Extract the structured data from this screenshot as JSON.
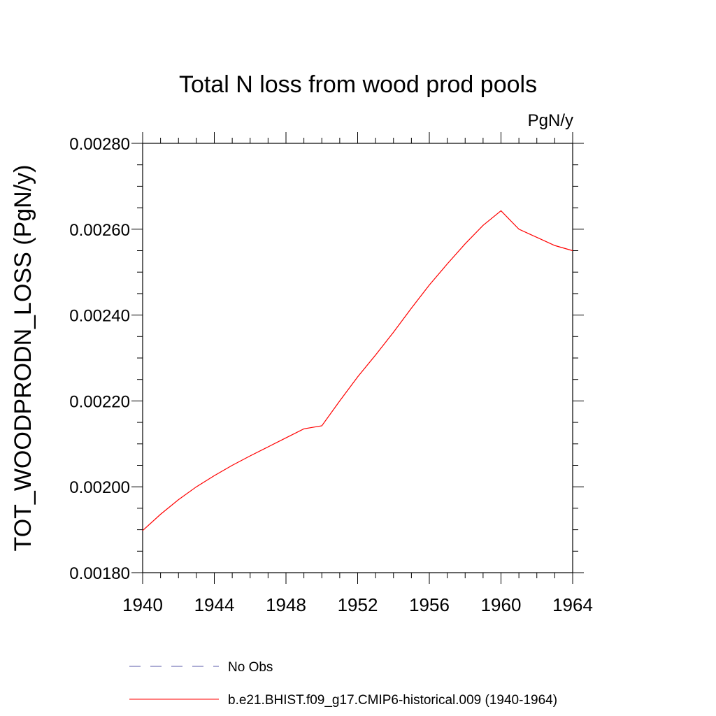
{
  "chart_data": {
    "type": "line",
    "title": "Total N loss from wood prod pools",
    "units_label": "PgN/y",
    "ylabel": "TOT_WOODPRODN_LOSS  (PgN/y)",
    "xlabel": "",
    "xlim": [
      1940,
      1964
    ],
    "ylim": [
      0.0018,
      0.0028
    ],
    "xticks": [
      "1940",
      "1944",
      "1948",
      "1952",
      "1956",
      "1960",
      "1964"
    ],
    "yticks": [
      "0.00180",
      "0.00200",
      "0.00220",
      "0.00240",
      "0.00260",
      "0.00280"
    ],
    "grid": false,
    "legend_position": "bottom",
    "series": [
      {
        "name": "No Obs",
        "color": "#5a5aa8",
        "dash": "dashed",
        "x": [],
        "y": []
      },
      {
        "name": "b.e21.BHIST.f09_g17.CMIP6-historical.009 (1940-1964)",
        "color": "#ff0000",
        "dash": "solid",
        "x": [
          1940,
          1941,
          1942,
          1943,
          1944,
          1945,
          1946,
          1947,
          1948,
          1949,
          1950,
          1951,
          1952,
          1953,
          1954,
          1955,
          1956,
          1957,
          1958,
          1959,
          1960,
          1961,
          1962,
          1963,
          1964
        ],
        "y": [
          0.001898,
          0.001936,
          0.00197,
          0.002,
          0.002026,
          0.00205,
          0.002072,
          0.002093,
          0.002114,
          0.002135,
          0.002142,
          0.0022,
          0.002256,
          0.002307,
          0.00236,
          0.002416,
          0.00247,
          0.002519,
          0.002566,
          0.002609,
          0.002643,
          0.0026,
          0.002581,
          0.002562,
          0.00255
        ]
      }
    ]
  }
}
